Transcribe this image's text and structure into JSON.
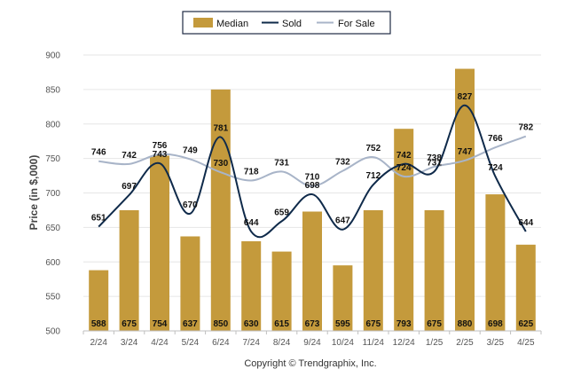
{
  "legend": {
    "median_label": "Median",
    "sold_label": "Sold",
    "forsale_label": "For Sale"
  },
  "copyright": "Copyright © Trendgraphix, Inc.",
  "colors": {
    "median": "#C49A3C",
    "sold": "#0F2A4A",
    "forsale": "#A8B4C8",
    "grid": "#E6E6E6"
  },
  "chart_data": {
    "type": "bar",
    "categories": [
      "2/24",
      "3/24",
      "4/24",
      "5/24",
      "6/24",
      "7/24",
      "8/24",
      "9/24",
      "10/24",
      "11/24",
      "12/24",
      "1/25",
      "2/25",
      "3/25",
      "4/25"
    ],
    "series": [
      {
        "name": "Median",
        "type": "bar",
        "values": [
          588,
          675,
          754,
          637,
          850,
          630,
          615,
          673,
          595,
          675,
          793,
          675,
          880,
          698,
          625
        ]
      },
      {
        "name": "Sold",
        "type": "line",
        "values": [
          651,
          697,
          743,
          670,
          781,
          644,
          659,
          698,
          647,
          712,
          742,
          731,
          827,
          724,
          644
        ]
      },
      {
        "name": "For Sale",
        "type": "line",
        "values": [
          746,
          742,
          756,
          749,
          730,
          718,
          731,
          710,
          732,
          752,
          724,
          738,
          747,
          766,
          782
        ]
      }
    ],
    "ylabel": "Price (in $,000)",
    "xlabel": "",
    "ylim": [
      500,
      900
    ],
    "yticks": [
      500,
      550,
      600,
      650,
      700,
      750,
      800,
      850,
      900
    ],
    "grid": true,
    "legend_position": "top-center"
  }
}
